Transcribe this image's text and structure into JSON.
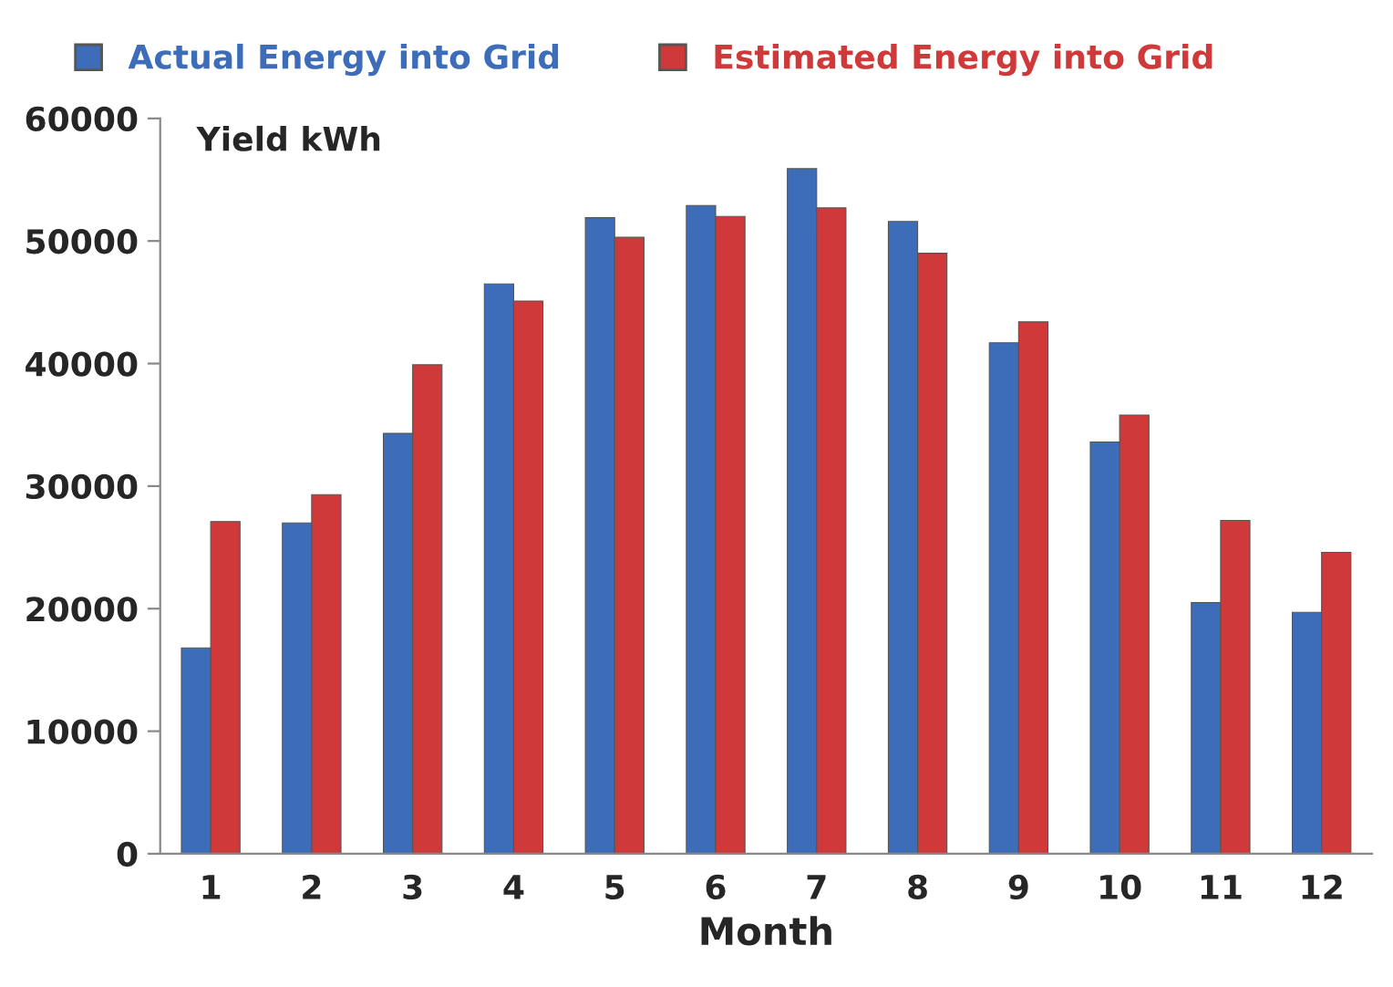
{
  "chart_data": {
    "type": "bar",
    "categories": [
      "1",
      "2",
      "3",
      "4",
      "5",
      "6",
      "7",
      "8",
      "9",
      "10",
      "11",
      "12"
    ],
    "series": [
      {
        "name": "Actual Energy into Grid",
        "color": "#3d6db8",
        "values": [
          16800,
          27000,
          34300,
          46500,
          51900,
          52900,
          55900,
          51600,
          41700,
          33600,
          20500,
          19700
        ]
      },
      {
        "name": "Estimated Energy into Grid",
        "color": "#d0393a",
        "values": [
          27100,
          29300,
          39900,
          45100,
          50300,
          52000,
          52700,
          49000,
          43400,
          35800,
          27200,
          24600
        ]
      }
    ],
    "xlabel": "Month",
    "ylabel": "Yield kWh",
    "ylim": [
      0,
      60000
    ],
    "yticks": [
      0,
      10000,
      20000,
      30000,
      40000,
      50000,
      60000
    ],
    "grid": false,
    "legend": "top"
  }
}
